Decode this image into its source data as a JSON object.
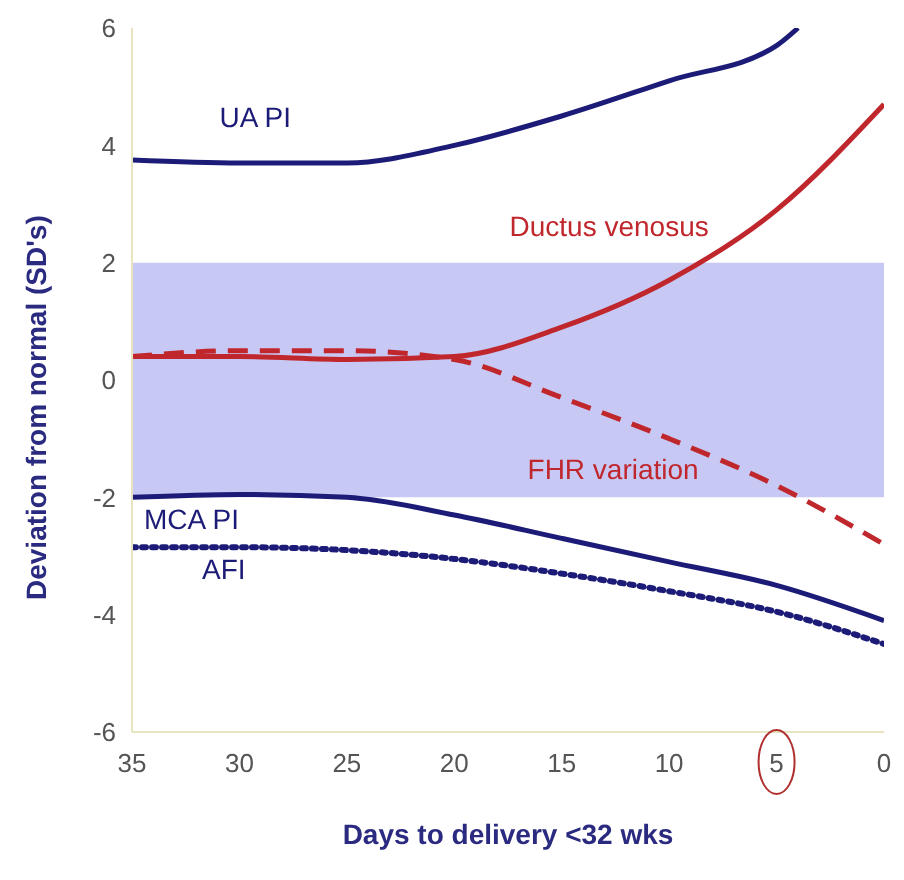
{
  "chart_data": {
    "type": "line",
    "xlabel": "Days to delivery <32 wks",
    "ylabel": "Deviation from normal (SD's)",
    "x": [
      35,
      30,
      25,
      20,
      15,
      10,
      5,
      0
    ],
    "xlim": [
      35,
      0
    ],
    "xticks": [
      35,
      30,
      25,
      20,
      15,
      10,
      5,
      0
    ],
    "ylim": [
      -6,
      6
    ],
    "yticks": [
      -6,
      -4,
      -2,
      0,
      2,
      4,
      6
    ],
    "grid": false,
    "legend": false,
    "marker": "none",
    "bands": [
      {
        "axis": "y",
        "from": -2,
        "to": 2,
        "color": "#c8c8f5"
      }
    ],
    "series": [
      {
        "name": "UA PI",
        "color": "#1c1c78",
        "line_style": "solid",
        "x": [
          35,
          30,
          25,
          20,
          15,
          10,
          5,
          4
        ],
        "values": [
          3.75,
          3.7,
          3.7,
          4.0,
          4.5,
          5.1,
          5.7,
          6.0
        ]
      },
      {
        "name": "Ductus venosus",
        "color": "#c0272d",
        "line_style": "solid",
        "values": [
          0.4,
          0.4,
          0.35,
          0.4,
          0.9,
          1.7,
          2.9,
          4.7
        ]
      },
      {
        "name": "FHR variation",
        "color": "#c0272d",
        "line_style": "dashed",
        "values": [
          0.4,
          0.5,
          0.5,
          0.35,
          -0.3,
          -1.0,
          -1.8,
          -2.8
        ]
      },
      {
        "name": "MCA PI",
        "color": "#1c1c78",
        "line_style": "solid",
        "values": [
          -2.0,
          -1.95,
          -2.0,
          -2.3,
          -2.7,
          -3.1,
          -3.5,
          -4.1
        ]
      },
      {
        "name": "AFI",
        "color": "#1c1c78",
        "line_style": "dotted",
        "values": [
          -2.85,
          -2.85,
          -2.9,
          -3.05,
          -3.3,
          -3.6,
          -3.95,
          -4.5
        ]
      }
    ]
  }
}
